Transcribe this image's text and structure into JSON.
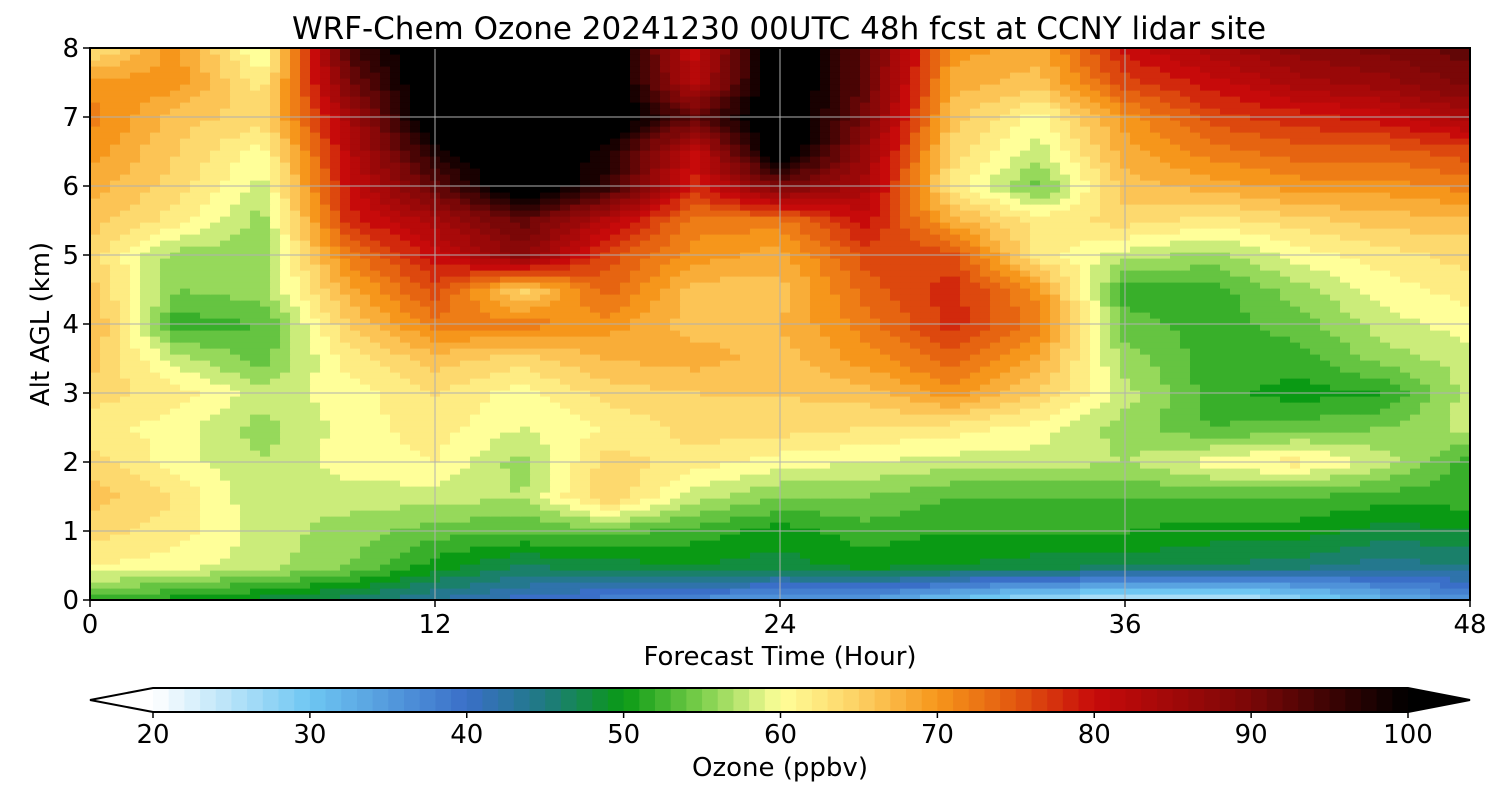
{
  "chart_data": {
    "type": "heatmap",
    "title": "WRF-Chem Ozone  20241230 00UTC 48h fcst at CCNY lidar site",
    "xlabel": "Forecast Time (Hour)",
    "ylabel": "Alt AGL (km)",
    "xlim": [
      0,
      48
    ],
    "ylim": [
      0,
      8
    ],
    "xticks": [
      0,
      12,
      24,
      36,
      48
    ],
    "yticks": [
      0,
      1,
      2,
      3,
      4,
      5,
      6,
      7,
      8
    ],
    "grid": true,
    "x": [
      0,
      3,
      6,
      9,
      12,
      15,
      18,
      21,
      24,
      27,
      30,
      33,
      36,
      39,
      42,
      45,
      48
    ],
    "y": [
      0,
      0.5,
      1,
      1.5,
      2,
      2.5,
      3,
      3.5,
      4,
      4.5,
      5,
      5.5,
      6,
      6.5,
      7,
      7.5,
      8
    ],
    "z": [
      [
        52,
        50,
        48,
        46,
        43,
        40,
        38,
        36,
        35,
        34,
        30,
        26,
        24,
        23,
        27,
        32,
        36
      ],
      [
        61,
        60,
        58,
        55,
        50,
        47,
        48,
        49,
        48,
        50,
        49,
        48,
        48,
        47,
        46,
        44,
        45
      ],
      [
        64,
        62,
        58,
        56,
        54,
        53,
        54,
        52,
        50,
        52,
        51,
        51,
        51,
        50,
        50,
        48,
        49
      ],
      [
        66,
        63,
        57,
        58,
        58,
        57,
        65,
        58,
        55,
        55,
        53,
        53,
        53,
        53,
        53,
        52,
        52
      ],
      [
        64,
        60,
        57,
        60,
        61,
        56,
        64,
        62,
        60,
        59,
        58,
        58,
        57,
        60,
        62,
        58,
        52
      ],
      [
        62,
        60,
        56,
        60,
        62,
        59,
        61,
        64,
        64,
        63,
        62,
        60,
        56,
        53,
        54,
        55,
        58
      ],
      [
        64,
        62,
        58,
        60,
        63,
        60,
        64,
        65,
        65,
        66,
        70,
        65,
        58,
        52,
        50,
        51,
        58
      ],
      [
        66,
        58,
        54,
        62,
        66,
        64,
        67,
        68,
        66,
        70,
        74,
        68,
        56,
        52,
        52,
        56,
        58
      ],
      [
        68,
        52,
        53,
        65,
        72,
        72,
        70,
        66,
        67,
        72,
        78,
        72,
        54,
        52,
        54,
        58,
        60
      ],
      [
        66,
        55,
        56,
        68,
        76,
        64,
        74,
        66,
        66,
        74,
        78,
        70,
        52,
        52,
        56,
        60,
        62
      ],
      [
        64,
        56,
        56,
        72,
        80,
        88,
        76,
        70,
        68,
        76,
        76,
        62,
        58,
        56,
        60,
        62,
        64
      ],
      [
        66,
        62,
        56,
        78,
        84,
        92,
        82,
        72,
        72,
        80,
        68,
        62,
        64,
        62,
        64,
        66,
        66
      ],
      [
        68,
        64,
        58,
        80,
        92,
        104,
        96,
        78,
        90,
        84,
        62,
        54,
        66,
        68,
        70,
        70,
        72
      ],
      [
        70,
        65,
        60,
        82,
        98,
        104,
        98,
        80,
        104,
        86,
        64,
        58,
        68,
        72,
        74,
        74,
        76
      ],
      [
        72,
        66,
        64,
        84,
        104,
        104,
        104,
        92,
        104,
        90,
        66,
        60,
        70,
        76,
        78,
        80,
        84
      ],
      [
        70,
        70,
        62,
        90,
        104,
        104,
        104,
        82,
        104,
        92,
        68,
        66,
        76,
        80,
        84,
        86,
        90
      ],
      [
        62,
        70,
        58,
        94,
        104,
        104,
        104,
        80,
        104,
        92,
        70,
        68,
        80,
        84,
        88,
        90,
        92
      ]
    ],
    "colorbar": {
      "label": "Ozone  (ppbv)",
      "min": 20,
      "max": 100,
      "ticks": [
        20,
        30,
        40,
        50,
        60,
        70,
        80,
        90,
        100
      ],
      "extend": "both",
      "stops": [
        [
          20,
          "#ffffff"
        ],
        [
          30,
          "#6ec6f2"
        ],
        [
          40,
          "#3a6fc8"
        ],
        [
          45,
          "#1e7a80"
        ],
        [
          50,
          "#0a9a14"
        ],
        [
          55,
          "#7ccf4c"
        ],
        [
          60,
          "#ffff99"
        ],
        [
          65,
          "#fdd063"
        ],
        [
          70,
          "#f6961b"
        ],
        [
          75,
          "#e2570f"
        ],
        [
          80,
          "#c70a0a"
        ],
        [
          90,
          "#7a0707"
        ],
        [
          100,
          "#000000"
        ]
      ]
    }
  }
}
